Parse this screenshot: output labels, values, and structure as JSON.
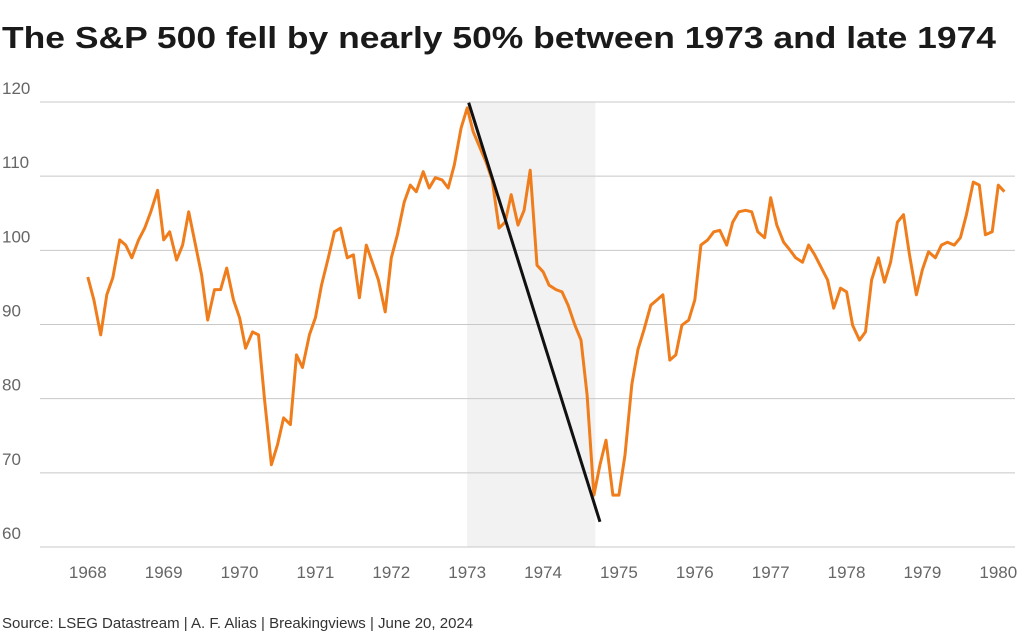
{
  "chart_data": {
    "type": "line",
    "title": "The S&P 500 fell by nearly 50% between 1973 and late 1974",
    "source": "Source: LSEG Datastream | A. F. Alias | Breakingviews | June 20, 2024",
    "color": "#f07d1c",
    "x": [
      1968.0,
      1968.08,
      1968.17,
      1968.25,
      1968.33,
      1968.42,
      1968.5,
      1968.58,
      1968.67,
      1968.75,
      1968.83,
      1968.92,
      1969.0,
      1969.08,
      1969.17,
      1969.25,
      1969.33,
      1969.42,
      1969.5,
      1969.58,
      1969.67,
      1969.75,
      1969.83,
      1969.92,
      1970.0,
      1970.08,
      1970.17,
      1970.25,
      1970.33,
      1970.42,
      1970.5,
      1970.58,
      1970.67,
      1970.75,
      1970.83,
      1970.92,
      1971.0,
      1971.08,
      1971.17,
      1971.25,
      1971.33,
      1971.42,
      1971.5,
      1971.58,
      1971.67,
      1971.75,
      1971.83,
      1971.92,
      1972.0,
      1972.08,
      1972.17,
      1972.25,
      1972.33,
      1972.42,
      1972.5,
      1972.58,
      1972.67,
      1972.75,
      1972.83,
      1972.92,
      1973.0,
      1973.08,
      1973.17,
      1973.25,
      1973.33,
      1973.42,
      1973.5,
      1973.58,
      1973.67,
      1973.75,
      1973.83,
      1973.92,
      1974.0,
      1974.08,
      1974.17,
      1974.25,
      1974.33,
      1974.42,
      1974.5,
      1974.58,
      1974.67,
      1974.75,
      1974.83,
      1974.92,
      1975.0,
      1975.08,
      1975.17,
      1975.25,
      1975.33,
      1975.42,
      1975.5,
      1975.58,
      1975.67,
      1975.75,
      1975.83,
      1975.92,
      1976.0,
      1976.08,
      1976.17,
      1976.25,
      1976.33,
      1976.42,
      1976.5,
      1976.58,
      1976.67,
      1976.75,
      1976.83,
      1976.92,
      1977.0,
      1977.08,
      1977.17,
      1977.25,
      1977.33,
      1977.42,
      1977.5,
      1977.58,
      1977.67,
      1977.75,
      1977.83,
      1977.92,
      1978.0,
      1978.08,
      1978.17,
      1978.25,
      1978.33,
      1978.42,
      1978.5,
      1978.58,
      1978.67,
      1978.75,
      1978.83,
      1978.92,
      1979.0,
      1979.08,
      1979.17,
      1979.25,
      1979.33,
      1979.42,
      1979.5,
      1979.58,
      1979.67,
      1979.75,
      1979.83,
      1979.92,
      1980.0,
      1980.08
    ],
    "values": [
      96.4,
      93.3,
      88.6,
      94.0,
      96.3,
      101.4,
      100.7,
      99.0,
      101.4,
      103.0,
      105.2,
      108.1,
      101.4,
      102.5,
      98.7,
      100.7,
      105.2,
      100.7,
      96.7,
      90.6,
      94.7,
      94.7,
      97.6,
      93.3,
      90.9,
      86.8,
      89.0,
      88.6,
      79.8,
      71.1,
      73.8,
      77.4,
      76.5,
      85.9,
      84.2,
      88.6,
      90.9,
      95.3,
      99.0,
      102.5,
      103.0,
      99.0,
      99.4,
      93.6,
      100.7,
      98.4,
      96.0,
      91.7,
      99.0,
      102.1,
      106.5,
      108.8,
      107.9,
      110.6,
      108.4,
      109.8,
      109.5,
      108.4,
      111.5,
      116.5,
      119.2,
      116.0,
      113.8,
      111.9,
      109.5,
      103.0,
      103.8,
      107.5,
      103.4,
      105.4,
      110.8,
      98.0,
      97.1,
      95.3,
      94.7,
      94.4,
      92.6,
      89.9,
      87.9,
      80.5,
      67.0,
      71.1,
      74.4,
      67.0,
      67.0,
      72.4,
      81.9,
      86.6,
      89.3,
      92.6,
      93.3,
      94.0,
      85.2,
      85.9,
      89.9,
      90.6,
      93.3,
      100.7,
      101.4,
      102.5,
      102.7,
      100.7,
      103.8,
      105.2,
      105.4,
      105.2,
      102.5,
      101.7,
      107.1,
      103.4,
      101.1,
      100.1,
      99.0,
      98.4,
      100.7,
      99.4,
      97.6,
      96.0,
      92.2,
      94.9,
      94.4,
      89.9,
      87.9,
      89.0,
      96.0,
      99.0,
      95.7,
      98.4,
      103.8,
      104.8,
      99.4,
      94.0,
      97.4,
      99.8,
      99.0,
      100.7,
      101.1,
      100.7,
      101.7,
      104.8,
      109.2,
      108.8,
      102.1,
      102.5,
      108.8,
      107.9
    ],
    "highlight_x": [
      1973,
      1974.69
    ],
    "annotation_line": {
      "x": [
        1973.02,
        1974.75
      ],
      "y": [
        119.9,
        63.4
      ]
    },
    "xlim": [
      1967.37,
      1980.22
    ],
    "xticks": [
      1968,
      1969,
      1970,
      1971,
      1972,
      1973,
      1974,
      1975,
      1976,
      1977,
      1978,
      1979,
      1980
    ],
    "ylim": [
      60,
      120
    ],
    "yticks": [
      60,
      70,
      80,
      90,
      100,
      110,
      120
    ],
    "grid": true
  }
}
